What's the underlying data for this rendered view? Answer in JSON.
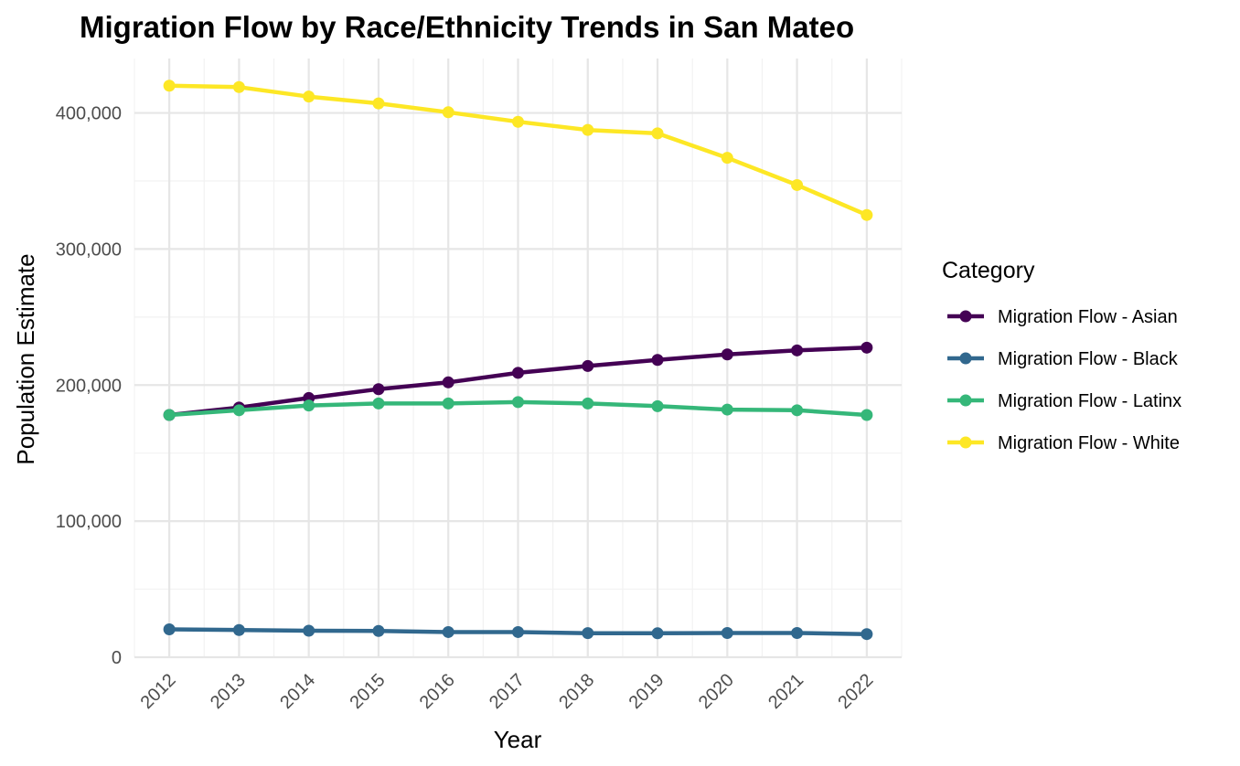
{
  "chart_data": {
    "type": "line",
    "title": "Migration Flow by Race/Ethnicity Trends in San Mateo",
    "xlabel": "Year",
    "ylabel": "Population Estimate",
    "x": [
      2012,
      2013,
      2014,
      2015,
      2016,
      2017,
      2018,
      2019,
      2020,
      2021,
      2022
    ],
    "xticks": [
      "2012",
      "2013",
      "2014",
      "2015",
      "2016",
      "2017",
      "2018",
      "2019",
      "2020",
      "2021",
      "2022"
    ],
    "ylim": [
      0,
      440000
    ],
    "yticks": [
      0,
      100000,
      200000,
      300000,
      400000
    ],
    "ytick_labels": [
      "0",
      "100,000",
      "200,000",
      "300,000",
      "400,000"
    ],
    "grid": true,
    "legend": {
      "title": "Category",
      "position": "right"
    },
    "series": [
      {
        "name": "Migration Flow - Asian",
        "color": "#440154",
        "values": [
          178000,
          183500,
          190500,
          197000,
          202000,
          209000,
          214000,
          218500,
          222500,
          225500,
          227500
        ]
      },
      {
        "name": "Migration Flow - Black",
        "color": "#31688E",
        "values": [
          20500,
          20000,
          19500,
          19300,
          18500,
          18500,
          17700,
          17600,
          17800,
          17800,
          17000
        ]
      },
      {
        "name": "Migration Flow - Latinx",
        "color": "#35B779",
        "values": [
          178000,
          181500,
          185000,
          186500,
          186500,
          187500,
          186500,
          184500,
          182000,
          181500,
          178000
        ]
      },
      {
        "name": "Migration Flow - White",
        "color": "#FDE725",
        "values": [
          420000,
          419000,
          412000,
          407000,
          400500,
          393500,
          387500,
          385000,
          367000,
          347000,
          325000
        ]
      }
    ]
  }
}
